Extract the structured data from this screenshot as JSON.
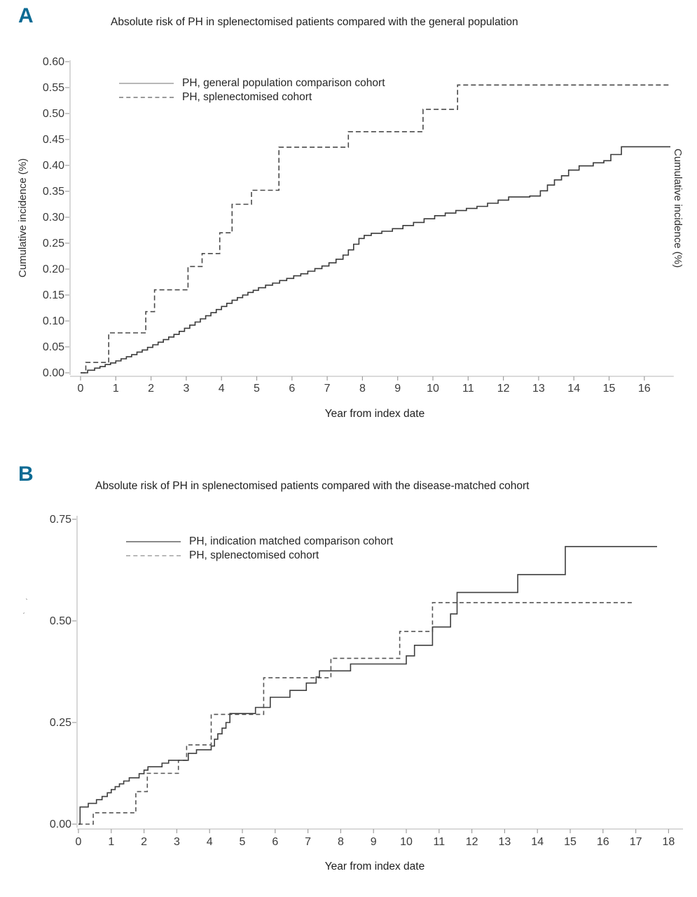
{
  "page": {
    "background": "#ffffff",
    "accent_letter_color": "#0c6b94"
  },
  "chart_data": [
    {
      "panel_letter": "A",
      "type": "step-line",
      "title": "Absolute risk of PH in splenectomised patients compared with the general population",
      "xlabel": "Year from index date",
      "ylabel_left": "Cumulative incidence (%)",
      "ylabel_right": "Cumulative incidence (%)",
      "xlim": [
        0,
        16.9
      ],
      "ylim": [
        0,
        0.6
      ],
      "grid": false,
      "legend_position": "upper-left-inside",
      "x_ticks": [
        0,
        1,
        2,
        3,
        4,
        5,
        6,
        7,
        8,
        9,
        10,
        11,
        12,
        13,
        14,
        15,
        16
      ],
      "y_ticks": [
        "0.00",
        "0.05",
        "0.10",
        "0.15",
        "0.20",
        "0.25",
        "0.30",
        "0.35",
        "0.40",
        "0.45",
        "0.50",
        "0.55",
        "0.60"
      ],
      "series": [
        {
          "name": "PH, general population comparison cohort",
          "line": "solid",
          "stroke": "#3a3a3a",
          "legend_stroke": "#b8b8b8",
          "end_x": 16.74,
          "points": [
            [
              0,
              0
            ],
            [
              0.2,
              0.005
            ],
            [
              0.4,
              0.009
            ],
            [
              0.55,
              0.012
            ],
            [
              0.7,
              0.016
            ],
            [
              0.85,
              0.019
            ],
            [
              1.0,
              0.023
            ],
            [
              1.15,
              0.027
            ],
            [
              1.3,
              0.031
            ],
            [
              1.45,
              0.035
            ],
            [
              1.6,
              0.04
            ],
            [
              1.75,
              0.044
            ],
            [
              1.9,
              0.049
            ],
            [
              2.05,
              0.054
            ],
            [
              2.2,
              0.059
            ],
            [
              2.35,
              0.064
            ],
            [
              2.5,
              0.069
            ],
            [
              2.65,
              0.074
            ],
            [
              2.8,
              0.08
            ],
            [
              2.95,
              0.086
            ],
            [
              3.1,
              0.092
            ],
            [
              3.25,
              0.098
            ],
            [
              3.4,
              0.104
            ],
            [
              3.55,
              0.11
            ],
            [
              3.7,
              0.116
            ],
            [
              3.85,
              0.122
            ],
            [
              4.0,
              0.128
            ],
            [
              4.15,
              0.134
            ],
            [
              4.3,
              0.14
            ],
            [
              4.45,
              0.145
            ],
            [
              4.6,
              0.15
            ],
            [
              4.75,
              0.155
            ],
            [
              4.9,
              0.159
            ],
            [
              5.05,
              0.164
            ],
            [
              5.25,
              0.169
            ],
            [
              5.45,
              0.173
            ],
            [
              5.65,
              0.178
            ],
            [
              5.85,
              0.182
            ],
            [
              6.05,
              0.187
            ],
            [
              6.25,
              0.191
            ],
            [
              6.45,
              0.196
            ],
            [
              6.65,
              0.201
            ],
            [
              6.85,
              0.206
            ],
            [
              7.05,
              0.212
            ],
            [
              7.25,
              0.219
            ],
            [
              7.45,
              0.227
            ],
            [
              7.6,
              0.237
            ],
            [
              7.75,
              0.248
            ],
            [
              7.9,
              0.259
            ],
            [
              8.05,
              0.265
            ],
            [
              8.25,
              0.269
            ],
            [
              8.55,
              0.273
            ],
            [
              8.85,
              0.278
            ],
            [
              9.15,
              0.284
            ],
            [
              9.45,
              0.29
            ],
            [
              9.75,
              0.297
            ],
            [
              10.05,
              0.303
            ],
            [
              10.35,
              0.308
            ],
            [
              10.65,
              0.313
            ],
            [
              10.95,
              0.317
            ],
            [
              11.25,
              0.321
            ],
            [
              11.55,
              0.327
            ],
            [
              11.85,
              0.333
            ],
            [
              12.15,
              0.339
            ],
            [
              12.75,
              0.341
            ],
            [
              13.05,
              0.351
            ],
            [
              13.25,
              0.362
            ],
            [
              13.45,
              0.372
            ],
            [
              13.65,
              0.38
            ],
            [
              13.85,
              0.391
            ],
            [
              14.15,
              0.399
            ],
            [
              14.55,
              0.405
            ],
            [
              14.85,
              0.409
            ],
            [
              15.05,
              0.421
            ],
            [
              15.35,
              0.436
            ]
          ]
        },
        {
          "name": "PH, splenectomised cohort",
          "line": "dashed",
          "stroke": "#4a4a4a",
          "legend_stroke": "#9a9a9a",
          "end_x": 16.7,
          "points": [
            [
              0,
              0
            ],
            [
              0.15,
              0.02
            ],
            [
              0.8,
              0.077
            ],
            [
              1.85,
              0.118
            ],
            [
              2.1,
              0.16
            ],
            [
              3.05,
              0.205
            ],
            [
              3.45,
              0.23
            ],
            [
              3.95,
              0.27
            ],
            [
              4.3,
              0.325
            ],
            [
              4.85,
              0.352
            ],
            [
              5.63,
              0.435
            ],
            [
              7.6,
              0.465
            ],
            [
              9.72,
              0.508
            ],
            [
              10.7,
              0.555
            ]
          ]
        }
      ]
    },
    {
      "panel_letter": "B",
      "type": "step-line",
      "title": "Absolute risk of PH in splenectomised patients compared with the disease-matched cohort",
      "xlabel": "Year from index date",
      "ylabel_left": "",
      "ylabel_right": "",
      "xlim": [
        0,
        18
      ],
      "ylim": [
        0,
        0.75
      ],
      "grid": false,
      "legend_position": "upper-left-inside",
      "x_ticks": [
        0,
        1,
        2,
        3,
        4,
        5,
        6,
        7,
        8,
        9,
        10,
        11,
        12,
        13,
        14,
        15,
        16,
        17,
        18
      ],
      "y_ticks": [
        "0.00",
        "0.25",
        "0.50",
        "0.75"
      ],
      "stray_marks": [
        "ˋ",
        "ˊ"
      ],
      "series": [
        {
          "name": "PH, indication matched comparison cohort",
          "line": "solid",
          "stroke": "#3f3f3f",
          "legend_stroke": "#8a8a8a",
          "end_x": 17.65,
          "points": [
            [
              0,
              0
            ],
            [
              0.05,
              0.042
            ],
            [
              0.3,
              0.051
            ],
            [
              0.55,
              0.06
            ],
            [
              0.72,
              0.068
            ],
            [
              0.88,
              0.077
            ],
            [
              1.0,
              0.085
            ],
            [
              1.12,
              0.092
            ],
            [
              1.25,
              0.099
            ],
            [
              1.38,
              0.106
            ],
            [
              1.55,
              0.114
            ],
            [
              1.85,
              0.124
            ],
            [
              2.0,
              0.133
            ],
            [
              2.12,
              0.141
            ],
            [
              2.55,
              0.15
            ],
            [
              2.75,
              0.157
            ],
            [
              3.35,
              0.174
            ],
            [
              3.6,
              0.183
            ],
            [
              4.05,
              0.192
            ],
            [
              4.15,
              0.209
            ],
            [
              4.25,
              0.222
            ],
            [
              4.38,
              0.236
            ],
            [
              4.5,
              0.25
            ],
            [
              4.62,
              0.272
            ],
            [
              5.4,
              0.287
            ],
            [
              5.85,
              0.312
            ],
            [
              6.45,
              0.329
            ],
            [
              6.95,
              0.347
            ],
            [
              7.25,
              0.362
            ],
            [
              7.35,
              0.377
            ],
            [
              8.3,
              0.394
            ],
            [
              10.0,
              0.414
            ],
            [
              10.25,
              0.44
            ],
            [
              10.8,
              0.485
            ],
            [
              11.35,
              0.517
            ],
            [
              11.55,
              0.57
            ],
            [
              13.4,
              0.614
            ],
            [
              14.85,
              0.683
            ]
          ]
        },
        {
          "name": "PH, splenectomised cohort",
          "line": "dashed",
          "stroke": "#565656",
          "legend_stroke": "#b8b8b8",
          "end_x": 16.9,
          "points": [
            [
              0,
              0
            ],
            [
              0.45,
              0.028
            ],
            [
              1.75,
              0.08
            ],
            [
              2.1,
              0.125
            ],
            [
              3.05,
              0.157
            ],
            [
              3.3,
              0.195
            ],
            [
              4.05,
              0.27
            ],
            [
              5.65,
              0.36
            ],
            [
              7.7,
              0.408
            ],
            [
              9.8,
              0.474
            ],
            [
              10.8,
              0.545
            ]
          ]
        }
      ]
    }
  ]
}
